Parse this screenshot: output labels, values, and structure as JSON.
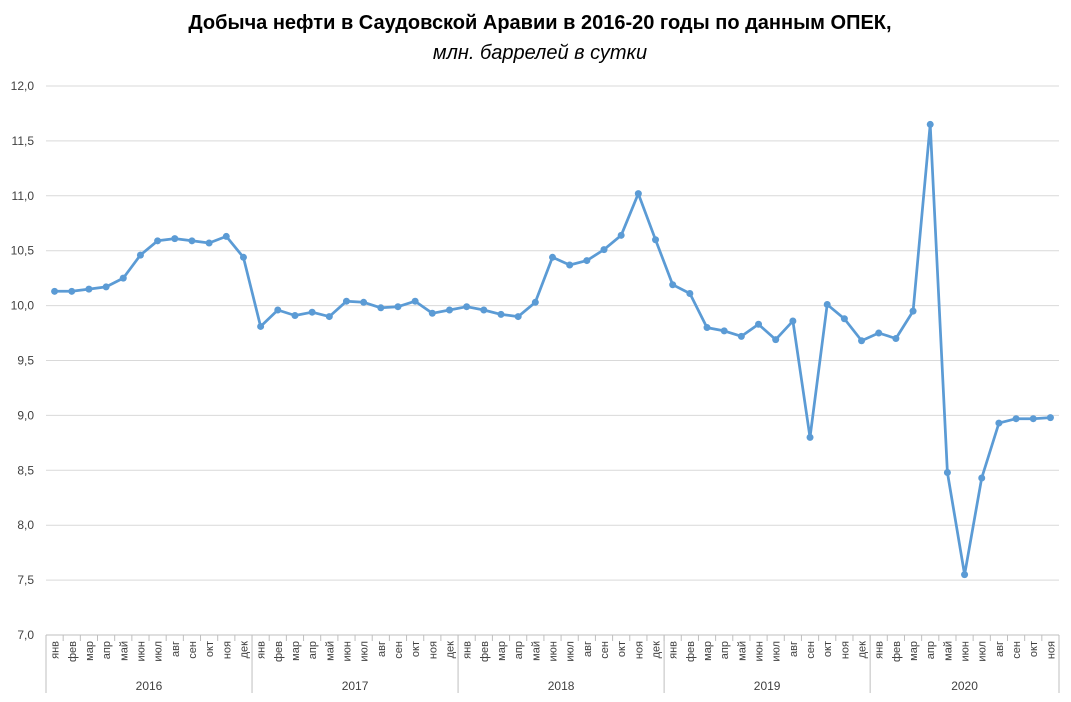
{
  "title": "Добыча нефти в Саудовской Аравии в 2016-20 годы по данным ОПЕК,",
  "subtitle": "млн. баррелей в сутки",
  "colors": {
    "line": "#5b9bd5",
    "grid": "#d9d9d9",
    "axis": "#bfbfbf"
  },
  "chart_data": {
    "type": "line",
    "ylim": [
      7.0,
      12.0
    ],
    "yticks": [
      "7,0",
      "7,5",
      "8,0",
      "8,5",
      "9,0",
      "9,5",
      "10,0",
      "10,5",
      "11,0",
      "11,5",
      "12,0"
    ],
    "grid": true,
    "x": [
      "янв",
      "фев",
      "мар",
      "апр",
      "май",
      "июн",
      "июл",
      "авг",
      "сен",
      "окт",
      "ноя",
      "дек",
      "янв",
      "фев",
      "мар",
      "апр",
      "май",
      "июн",
      "июл",
      "авг",
      "сен",
      "окт",
      "ноя",
      "дек",
      "янв",
      "фев",
      "мар",
      "апр",
      "май",
      "июн",
      "июл",
      "авг",
      "сен",
      "окт",
      "ноя",
      "дек",
      "янв",
      "фев",
      "мар",
      "апр",
      "май",
      "июн",
      "июл",
      "авг",
      "сен",
      "окт",
      "ноя",
      "дек",
      "янв",
      "фев",
      "мар",
      "апр",
      "май",
      "июн",
      "июл",
      "авг",
      "сен",
      "окт",
      "ноя"
    ],
    "years": [
      {
        "label": "2016",
        "count": 12
      },
      {
        "label": "2017",
        "count": 12
      },
      {
        "label": "2018",
        "count": 12
      },
      {
        "label": "2019",
        "count": 12
      },
      {
        "label": "2020",
        "count": 11
      }
    ],
    "series": [
      {
        "values": [
          10.13,
          10.13,
          10.15,
          10.17,
          10.25,
          10.46,
          10.59,
          10.61,
          10.59,
          10.57,
          10.63,
          10.44,
          9.81,
          9.96,
          9.91,
          9.94,
          9.9,
          10.04,
          10.03,
          9.98,
          9.99,
          10.04,
          9.93,
          9.96,
          9.99,
          9.96,
          9.92,
          9.9,
          10.03,
          10.44,
          10.37,
          10.41,
          10.51,
          10.64,
          11.02,
          10.6,
          10.19,
          10.11,
          9.8,
          9.77,
          9.72,
          9.83,
          9.69,
          9.86,
          8.8,
          10.01,
          9.88,
          9.68,
          9.75,
          9.7,
          9.95,
          11.65,
          8.48,
          7.55,
          8.43,
          8.93,
          8.97,
          8.97,
          8.98
        ]
      }
    ]
  }
}
